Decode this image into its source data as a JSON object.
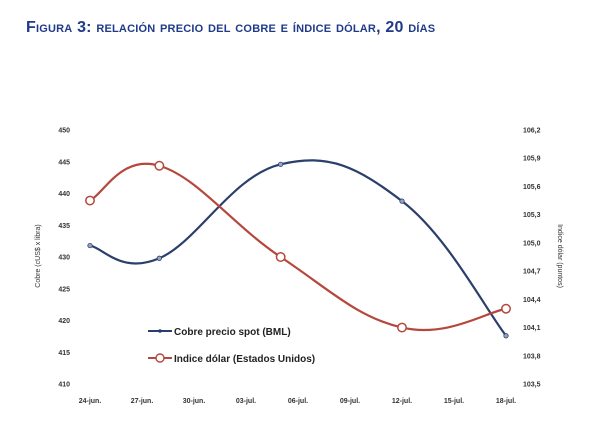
{
  "figure": {
    "title": "Figura 3: relación precio del cobre e índice dólar, 20 días"
  },
  "chart_data": {
    "type": "line",
    "x": [
      "24-jun.",
      "27-jun.",
      "30-jun.",
      "03-jul.",
      "06-jul.",
      "09-jul.",
      "12-jul.",
      "15-jul.",
      "18-jul."
    ],
    "series": [
      {
        "name": "Cobre precio spot (BML)",
        "axis": "left",
        "color": "#2a3f6b",
        "points": [
          [
            "24-jun.",
            431.8
          ],
          [
            "28-jun.",
            429.8
          ],
          [
            "05-jul.",
            444.6
          ],
          [
            "12-jul.",
            438.8
          ],
          [
            "18-jul.",
            417.6
          ]
        ]
      },
      {
        "name": "Indice dólar (Estados Unidos)",
        "axis": "right",
        "color": "#b5473d",
        "points": [
          [
            "24-jun.",
            105.45
          ],
          [
            "28-jun.",
            105.82
          ],
          [
            "05-jul.",
            104.85
          ],
          [
            "12-jul.",
            104.1
          ],
          [
            "18-jul.",
            104.3
          ]
        ]
      }
    ],
    "ylabel_left": "Cobre (cUS$ x libra)",
    "ylabel_right": "Indice dólar (puntos)",
    "ylim_left": [
      410,
      450
    ],
    "yticks_left": [
      "450",
      "445",
      "440",
      "435",
      "430",
      "425",
      "420",
      "415",
      "410"
    ],
    "ylim_right": [
      103.5,
      106.2
    ],
    "yticks_right": [
      "106,2",
      "105,9",
      "105,6",
      "105,3",
      "105,0",
      "104,7",
      "104,4",
      "104,1",
      "103,8",
      "103,5"
    ],
    "legend_position": "bottom-left",
    "grid": false
  }
}
